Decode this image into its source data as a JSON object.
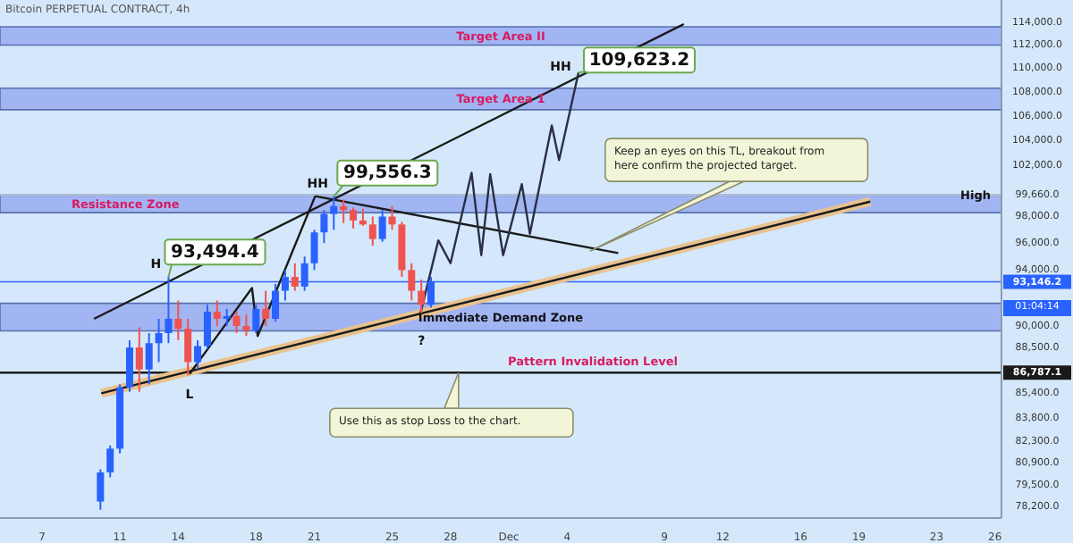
{
  "chart_data": {
    "type": "candlestick",
    "title": "Bitcoin PERPETUAL CONTRACT, 4h",
    "x": [
      "--11-10T00:00",
      "--11-10T12:00",
      "--11-11T00:00",
      "--11-11T12:00",
      "--11-12T00:00",
      "--11-12T12:00",
      "--11-13T00:00",
      "--11-13T12:00",
      "--11-14T00:00",
      "--11-14T12:00",
      "--11-15T00:00",
      "--11-15T12:00",
      "--11-16T00:00",
      "--11-16T12:00",
      "--11-17T00:00",
      "--11-17T12:00",
      "--11-18T00:00",
      "--11-18T12:00",
      "--11-19T00:00",
      "--11-19T12:00",
      "--11-20T00:00",
      "--11-20T12:00",
      "--11-21T00:00",
      "--11-21T12:00",
      "--11-22T00:00",
      "--11-22T12:00",
      "--11-23T00:00",
      "--11-23T12:00",
      "--11-24T00:00",
      "--11-24T12:00",
      "--11-25T00:00",
      "--11-25T12:00",
      "--11-26T00:00",
      "--11-26T12:00",
      "--11-27T00:00"
    ],
    "ohlc": [
      [
        78500,
        80500,
        78000,
        80300
      ],
      [
        80300,
        82000,
        80000,
        81800
      ],
      [
        81800,
        86000,
        81500,
        85800
      ],
      [
        85800,
        89000,
        85500,
        88500
      ],
      [
        88500,
        89900,
        85500,
        87000
      ],
      [
        87000,
        89500,
        86000,
        88800
      ],
      [
        88800,
        90500,
        87500,
        89500
      ],
      [
        89500,
        93494.4,
        88800,
        90500
      ],
      [
        90500,
        91800,
        89000,
        89800
      ],
      [
        89800,
        90500,
        86600,
        87500
      ],
      [
        87500,
        89000,
        87000,
        88600
      ],
      [
        88600,
        91500,
        88400,
        91000
      ],
      [
        91000,
        91800,
        90000,
        90500
      ],
      [
        90500,
        91200,
        90000,
        90700
      ],
      [
        90700,
        91000,
        89500,
        90000
      ],
      [
        90000,
        90800,
        89300,
        89700
      ],
      [
        89700,
        91500,
        89500,
        91200
      ],
      [
        91200,
        92500,
        90000,
        90500
      ],
      [
        90500,
        93000,
        90300,
        92500
      ],
      [
        92500,
        94000,
        91800,
        93500
      ],
      [
        93500,
        94500,
        92500,
        92800
      ],
      [
        92800,
        95000,
        92500,
        94500
      ],
      [
        94500,
        97000,
        94000,
        96800
      ],
      [
        96800,
        98500,
        96000,
        98200
      ],
      [
        98200,
        99556.3,
        97000,
        98800
      ],
      [
        98800,
        99300,
        97500,
        98500
      ],
      [
        98500,
        98700,
        97100,
        97700
      ],
      [
        97700,
        98600,
        97300,
        97400
      ],
      [
        97400,
        98000,
        95800,
        96300
      ],
      [
        96300,
        98500,
        96100,
        98000
      ],
      [
        98000,
        98800,
        97000,
        97400
      ],
      [
        97400,
        97600,
        93500,
        94000
      ],
      [
        94000,
        94500,
        91800,
        92500
      ],
      [
        92500,
        93300,
        90900,
        91500
      ],
      [
        91500,
        93500,
        91300,
        93146.2
      ]
    ],
    "colors": [
      "#2962ff",
      "#2962ff",
      "#2962ff",
      "#2962ff",
      "#ef5350",
      "#2962ff",
      "#2962ff",
      "#2962ff",
      "#ef5350",
      "#ef5350",
      "#2962ff",
      "#2962ff",
      "#ef5350",
      "#2962ff",
      "#ef5350",
      "#ef5350",
      "#2962ff",
      "#ef5350",
      "#2962ff",
      "#2962ff",
      "#ef5350",
      "#2962ff",
      "#2962ff",
      "#2962ff",
      "#2962ff",
      "#ef5350",
      "#ef5350",
      "#ef5350",
      "#ef5350",
      "#2962ff",
      "#ef5350",
      "#ef5350",
      "#ef5350",
      "#ef5350",
      "#2962ff"
    ],
    "series": [
      {
        "type": "line",
        "color": "#e8c28f",
        "x": [
          "--11-10T01:00",
          "--12-19T14:00"
        ],
        "values": [
          85400,
          99150
        ]
      },
      {
        "type": "line",
        "color": "#1a1a1a",
        "x": [
          "--11-10T01:00",
          "--12-19T14:00"
        ],
        "values": [
          85400,
          99150
        ]
      },
      {
        "type": "line",
        "color": "#1a1a1a",
        "x": [
          "--11-09T16:00",
          "--12-10T00:00"
        ],
        "values": [
          90500,
          113840
        ]
      },
      {
        "type": "line",
        "color": "#1a1a1a",
        "x": [
          "--11-21T01:00",
          "--12-06T15:00"
        ],
        "values": [
          99570,
          95250
        ]
      },
      {
        "type": "line",
        "color": "#1a1a1a",
        "x": [
          "--11-14T14:00",
          "--11-17T19:00",
          "--11-18T02:00",
          "--11-21T01:00"
        ],
        "values": [
          86700,
          92700,
          89300,
          99570
        ]
      },
      {
        "type": "line",
        "color": "#2a2f45",
        "x": [
          "--11-26T11:00",
          "--11-27T09:00",
          "--11-28T00:00",
          "--11-29T02:00",
          "--11-29T14:00",
          "--11-30T01:00",
          "--11-30T17:00",
          "--12-01T16:00",
          "--12-02T02:00",
          "--12-03T05:00",
          "--12-03T14:00",
          "--12-04T14:00"
        ],
        "values": [
          90900,
          96200,
          94500,
          101400,
          95100,
          101300,
          95100,
          100500,
          96700,
          105200,
          102400,
          109623.2
        ]
      }
    ],
    "bands": [
      {
        "axis": "y",
        "from": 112000,
        "to": 113600,
        "label": "Target Area II",
        "color": "#8c9ff0"
      },
      {
        "axis": "y",
        "from": 106500,
        "to": 108300,
        "label": "Target Area 1",
        "color": "#8c9ff0"
      },
      {
        "axis": "y",
        "from": 98300,
        "to": 99660,
        "label": "Resistance Zone",
        "color": "#8c9ff0"
      },
      {
        "axis": "y",
        "from": 89650,
        "to": 91600,
        "label": "Immediate Demand Zone",
        "color": "#8c9ff0"
      }
    ],
    "ref_lines": [
      {
        "axis": "y",
        "value": 99660,
        "label": "High",
        "color": "#b8c4d4"
      },
      {
        "axis": "y",
        "value": 93146.2,
        "label": null,
        "color": "#2962ff"
      },
      {
        "axis": "y",
        "value": 86787.1,
        "label": "Pattern Invalidation Level",
        "color": "#1a1a1a"
      }
    ],
    "annotations": [
      {
        "text": "H",
        "x": "--11-13T12:00",
        "y": 93494.4
      },
      {
        "text": "93,494.4",
        "x": "--11-13T12:00",
        "y": 93494.4
      },
      {
        "text": "L",
        "x": "--11-14T14:00",
        "y": 86700
      },
      {
        "text": "HH",
        "x": "--11-22T00:00",
        "y": 99556.3
      },
      {
        "text": "99,556.3",
        "x": "--11-22T00:00",
        "y": 99556.3
      },
      {
        "text": "?",
        "x": "--11-26T12:00",
        "y": 90900
      },
      {
        "text": "HH",
        "x": "--12-04T14:00",
        "y": 109623.2
      },
      {
        "text": "109,623.2",
        "x": "--12-04T14:00",
        "y": 109623.2
      },
      {
        "text": "Keep an eyes on this TL, breakout from here confirm the projected target.",
        "x": "--12-05T04:00",
        "y": 95400
      },
      {
        "text": "Use this as stop Loss to the chart.",
        "x": "--11-28T10:00",
        "y": 86787.1
      },
      "01:04:14"
    ],
    "log": true,
    "xlim": [
      "--11-04T20:00",
      "--12-26T08:00"
    ],
    "xticks": [
      {
        "value": "--11-07",
        "label": "7"
      },
      {
        "value": "--11-11",
        "label": "11"
      },
      {
        "value": "--11-14",
        "label": "14"
      },
      {
        "value": "--11-18",
        "label": "18"
      },
      {
        "value": "--11-21",
        "label": "21"
      },
      {
        "value": "--11-25",
        "label": "25"
      },
      {
        "value": "--11-28",
        "label": "28"
      },
      {
        "value": "--12-01",
        "label": "Dec"
      },
      {
        "value": "--12-04",
        "label": "4"
      },
      {
        "value": "--12-09",
        "label": "9"
      },
      {
        "value": "--12-12",
        "label": "12"
      },
      {
        "value": "--12-16",
        "label": "16"
      },
      {
        "value": "--12-19",
        "label": "19"
      },
      {
        "value": "--12-23",
        "label": "23"
      },
      {
        "value": "--12-26",
        "label": "26"
      }
    ],
    "ylim": [
      77500,
      116000
    ],
    "yticks": [
      {
        "value": 114000,
        "label": "114,000.0"
      },
      {
        "value": 112000,
        "label": "112,000.0"
      },
      {
        "value": 110000,
        "label": "110,000.0"
      },
      {
        "value": 108000,
        "label": "108,000.0"
      },
      {
        "value": 106000,
        "label": "106,000.0"
      },
      {
        "value": 104000,
        "label": "104,000.0"
      },
      {
        "value": 102000,
        "label": "102,000.0"
      },
      {
        "value": 99660,
        "label": "99,660.0"
      },
      {
        "value": 98000,
        "label": "98,000.0"
      },
      {
        "value": 96000,
        "label": "96,000.0"
      },
      {
        "value": 94000,
        "label": "94,000.0"
      },
      {
        "value": 93146.2,
        "label": "93,146.2"
      },
      {
        "value": 90000,
        "label": "90,000.0"
      },
      {
        "value": 88500,
        "label": "88,500.0"
      },
      {
        "value": 86787.1,
        "label": "86,787.1"
      },
      {
        "value": 85400,
        "label": "85,400.0"
      },
      {
        "value": 83800,
        "label": "83,800.0"
      },
      {
        "value": 82300,
        "label": "82,300.0"
      },
      {
        "value": 80900,
        "label": "80,900.0"
      },
      {
        "value": 79500,
        "label": "79,500.0"
      },
      {
        "value": 78200,
        "label": "78,200.0"
      }
    ]
  }
}
